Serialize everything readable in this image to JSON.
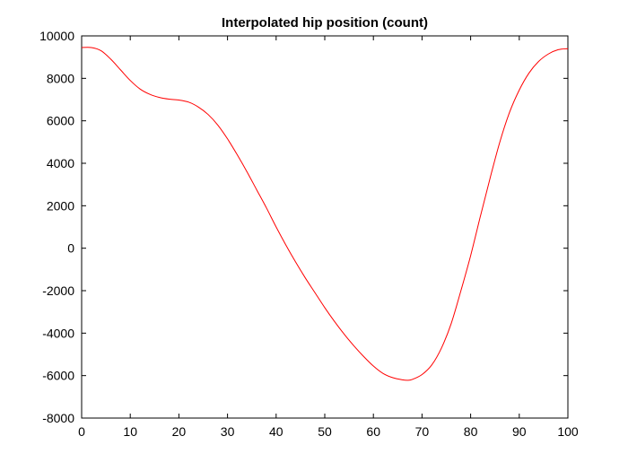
{
  "chart_data": {
    "type": "line",
    "title": "Interpolated hip position (count)",
    "xlabel": "",
    "ylabel": "",
    "xlim": [
      0,
      100
    ],
    "ylim": [
      -8000,
      10000
    ],
    "xticks": [
      0,
      10,
      20,
      30,
      40,
      50,
      60,
      70,
      80,
      90,
      100
    ],
    "yticks": [
      -8000,
      -6000,
      -4000,
      -2000,
      0,
      2000,
      4000,
      6000,
      8000,
      10000
    ],
    "xtick_labels": [
      "0",
      "10",
      "20",
      "30",
      "40",
      "50",
      "60",
      "70",
      "80",
      "90",
      "100"
    ],
    "ytick_labels": [
      "-8000",
      "-6000",
      "-4000",
      "-2000",
      "0",
      "2000",
      "4000",
      "6000",
      "8000",
      "10000"
    ],
    "grid": false,
    "legend": "none",
    "series": [
      {
        "color": "#ff0000",
        "x": [
          0,
          2,
          4,
          6,
          8,
          10,
          12,
          14,
          16,
          18,
          20,
          22,
          24,
          26,
          28,
          30,
          32,
          34,
          36,
          38,
          40,
          42,
          44,
          46,
          48,
          50,
          52,
          54,
          56,
          58,
          60,
          62,
          64,
          66,
          67,
          68,
          70,
          72,
          74,
          76,
          78,
          80,
          82,
          84,
          86,
          88,
          90,
          92,
          94,
          96,
          98,
          100
        ],
        "y": [
          9450,
          9450,
          9300,
          8900,
          8400,
          7900,
          7500,
          7250,
          7100,
          7020,
          6980,
          6880,
          6650,
          6300,
          5800,
          5150,
          4400,
          3600,
          2750,
          1900,
          1000,
          150,
          -650,
          -1400,
          -2100,
          -2800,
          -3450,
          -4050,
          -4600,
          -5100,
          -5550,
          -5900,
          -6100,
          -6200,
          -6220,
          -6180,
          -5950,
          -5500,
          -4700,
          -3550,
          -2000,
          -350,
          1500,
          3300,
          5000,
          6400,
          7450,
          8250,
          8800,
          9150,
          9350,
          9400
        ]
      }
    ]
  }
}
